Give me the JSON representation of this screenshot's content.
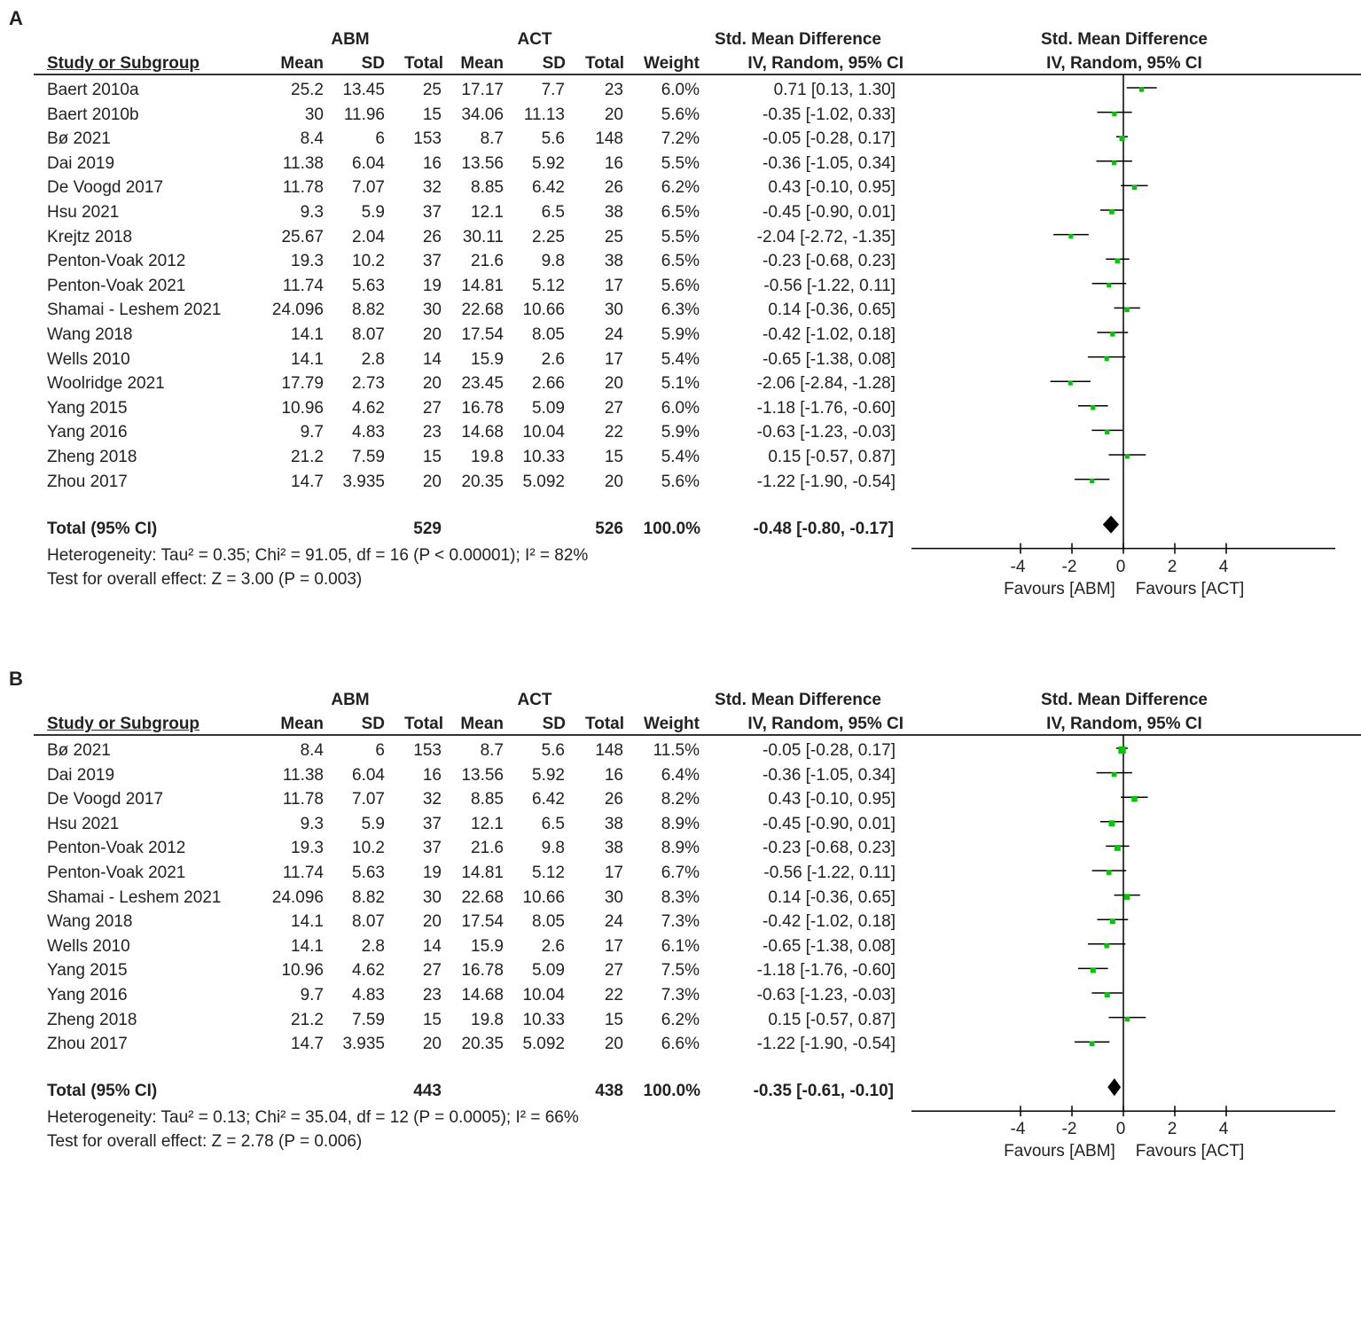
{
  "chart_data": [
    {
      "type": "forest",
      "panel_label": "A",
      "group1": "ABM",
      "group2": "ACT",
      "headers": {
        "study": "Study or Subgroup",
        "mean": "Mean",
        "sd": "SD",
        "total": "Total",
        "weight": "Weight",
        "effect_title": "Std. Mean Difference",
        "effect_method": "IV, Random, 95% CI"
      },
      "studies": [
        {
          "name": "Baert 2010a",
          "m1": "25.2",
          "sd1": "13.45",
          "n1": "25",
          "m2": "17.17",
          "sd2": "7.7",
          "n2": "23",
          "weight": "6.0%",
          "ci_text": "0.71 [0.13, 1.30]",
          "smd": 0.71,
          "lo": 0.13,
          "hi": 1.3
        },
        {
          "name": "Baert 2010b",
          "m1": "30",
          "sd1": "11.96",
          "n1": "15",
          "m2": "34.06",
          "sd2": "11.13",
          "n2": "20",
          "weight": "5.6%",
          "ci_text": "-0.35 [-1.02, 0.33]",
          "smd": -0.35,
          "lo": -1.02,
          "hi": 0.33
        },
        {
          "name": "Bø 2021",
          "m1": "8.4",
          "sd1": "6",
          "n1": "153",
          "m2": "8.7",
          "sd2": "5.6",
          "n2": "148",
          "weight": "7.2%",
          "ci_text": "-0.05 [-0.28, 0.17]",
          "smd": -0.05,
          "lo": -0.28,
          "hi": 0.17
        },
        {
          "name": "Dai 2019",
          "m1": "11.38",
          "sd1": "6.04",
          "n1": "16",
          "m2": "13.56",
          "sd2": "5.92",
          "n2": "16",
          "weight": "5.5%",
          "ci_text": "-0.36 [-1.05, 0.34]",
          "smd": -0.36,
          "lo": -1.05,
          "hi": 0.34
        },
        {
          "name": "De Voogd 2017",
          "m1": "11.78",
          "sd1": "7.07",
          "n1": "32",
          "m2": "8.85",
          "sd2": "6.42",
          "n2": "26",
          "weight": "6.2%",
          "ci_text": "0.43 [-0.10, 0.95]",
          "smd": 0.43,
          "lo": -0.1,
          "hi": 0.95
        },
        {
          "name": "Hsu 2021",
          "m1": "9.3",
          "sd1": "5.9",
          "n1": "37",
          "m2": "12.1",
          "sd2": "6.5",
          "n2": "38",
          "weight": "6.5%",
          "ci_text": "-0.45 [-0.90, 0.01]",
          "smd": -0.45,
          "lo": -0.9,
          "hi": 0.01
        },
        {
          "name": "Krejtz 2018",
          "m1": "25.67",
          "sd1": "2.04",
          "n1": "26",
          "m2": "30.11",
          "sd2": "2.25",
          "n2": "25",
          "weight": "5.5%",
          "ci_text": "-2.04 [-2.72, -1.35]",
          "smd": -2.04,
          "lo": -2.72,
          "hi": -1.35
        },
        {
          "name": "Penton-Voak 2012",
          "m1": "19.3",
          "sd1": "10.2",
          "n1": "37",
          "m2": "21.6",
          "sd2": "9.8",
          "n2": "38",
          "weight": "6.5%",
          "ci_text": "-0.23 [-0.68, 0.23]",
          "smd": -0.23,
          "lo": -0.68,
          "hi": 0.23
        },
        {
          "name": "Penton-Voak 2021",
          "m1": "11.74",
          "sd1": "5.63",
          "n1": "19",
          "m2": "14.81",
          "sd2": "5.12",
          "n2": "17",
          "weight": "5.6%",
          "ci_text": "-0.56 [-1.22, 0.11]",
          "smd": -0.56,
          "lo": -1.22,
          "hi": 0.11
        },
        {
          "name": "Shamai - Leshem 2021",
          "m1": "24.096",
          "sd1": "8.82",
          "n1": "30",
          "m2": "22.68",
          "sd2": "10.66",
          "n2": "30",
          "weight": "6.3%",
          "ci_text": "0.14 [-0.36, 0.65]",
          "smd": 0.14,
          "lo": -0.36,
          "hi": 0.65
        },
        {
          "name": "Wang 2018",
          "m1": "14.1",
          "sd1": "8.07",
          "n1": "20",
          "m2": "17.54",
          "sd2": "8.05",
          "n2": "24",
          "weight": "5.9%",
          "ci_text": "-0.42 [-1.02, 0.18]",
          "smd": -0.42,
          "lo": -1.02,
          "hi": 0.18
        },
        {
          "name": "Wells 2010",
          "m1": "14.1",
          "sd1": "2.8",
          "n1": "14",
          "m2": "15.9",
          "sd2": "2.6",
          "n2": "17",
          "weight": "5.4%",
          "ci_text": "-0.65 [-1.38, 0.08]",
          "smd": -0.65,
          "lo": -1.38,
          "hi": 0.08
        },
        {
          "name": "Woolridge 2021",
          "m1": "17.79",
          "sd1": "2.73",
          "n1": "20",
          "m2": "23.45",
          "sd2": "2.66",
          "n2": "20",
          "weight": "5.1%",
          "ci_text": "-2.06 [-2.84, -1.28]",
          "smd": -2.06,
          "lo": -2.84,
          "hi": -1.28
        },
        {
          "name": "Yang 2015",
          "m1": "10.96",
          "sd1": "4.62",
          "n1": "27",
          "m2": "16.78",
          "sd2": "5.09",
          "n2": "27",
          "weight": "6.0%",
          "ci_text": "-1.18 [-1.76, -0.60]",
          "smd": -1.18,
          "lo": -1.76,
          "hi": -0.6
        },
        {
          "name": "Yang 2016",
          "m1": "9.7",
          "sd1": "4.83",
          "n1": "23",
          "m2": "14.68",
          "sd2": "10.04",
          "n2": "22",
          "weight": "5.9%",
          "ci_text": "-0.63 [-1.23, -0.03]",
          "smd": -0.63,
          "lo": -1.23,
          "hi": -0.03
        },
        {
          "name": "Zheng 2018",
          "m1": "21.2",
          "sd1": "7.59",
          "n1": "15",
          "m2": "19.8",
          "sd2": "10.33",
          "n2": "15",
          "weight": "5.4%",
          "ci_text": "0.15 [-0.57, 0.87]",
          "smd": 0.15,
          "lo": -0.57,
          "hi": 0.87
        },
        {
          "name": "Zhou 2017",
          "m1": "14.7",
          "sd1": "3.935",
          "n1": "20",
          "m2": "20.35",
          "sd2": "5.092",
          "n2": "20",
          "weight": "5.6%",
          "ci_text": "-1.22 [-1.90, -0.54]",
          "smd": -1.22,
          "lo": -1.9,
          "hi": -0.54
        }
      ],
      "total": {
        "label": "Total (95% CI)",
        "n1": "529",
        "n2": "526",
        "weight": "100.0%",
        "ci_text": "-0.48 [-0.80, -0.17]",
        "smd": -0.48,
        "lo": -0.8,
        "hi": -0.17
      },
      "heterogeneity": "Heterogeneity: Tau² = 0.35; Chi² = 91.05, df = 16 (P < 0.00001); I² = 82%",
      "overall_effect": "Test for overall effect: Z = 3.00 (P = 0.003)",
      "axis": {
        "ticks": [
          "-4",
          "-2",
          "0",
          "2",
          "4"
        ],
        "favours_left": "Favours [ABM]",
        "favours_right": "Favours [ACT]"
      },
      "colors": {
        "square": "#00c800",
        "line": "#000000",
        "diamond": "#000000"
      }
    },
    {
      "type": "forest",
      "panel_label": "B",
      "group1": "ABM",
      "group2": "ACT",
      "headers": {
        "study": "Study or Subgroup",
        "mean": "Mean",
        "sd": "SD",
        "total": "Total",
        "weight": "Weight",
        "effect_title": "Std. Mean Difference",
        "effect_method": "IV, Random, 95% CI"
      },
      "studies": [
        {
          "name": "Bø 2021",
          "m1": "8.4",
          "sd1": "6",
          "n1": "153",
          "m2": "8.7",
          "sd2": "5.6",
          "n2": "148",
          "weight": "11.5%",
          "ci_text": "-0.05 [-0.28, 0.17]",
          "smd": -0.05,
          "lo": -0.28,
          "hi": 0.17
        },
        {
          "name": "Dai 2019",
          "m1": "11.38",
          "sd1": "6.04",
          "n1": "16",
          "m2": "13.56",
          "sd2": "5.92",
          "n2": "16",
          "weight": "6.4%",
          "ci_text": "-0.36 [-1.05, 0.34]",
          "smd": -0.36,
          "lo": -1.05,
          "hi": 0.34
        },
        {
          "name": "De Voogd 2017",
          "m1": "11.78",
          "sd1": "7.07",
          "n1": "32",
          "m2": "8.85",
          "sd2": "6.42",
          "n2": "26",
          "weight": "8.2%",
          "ci_text": "0.43 [-0.10, 0.95]",
          "smd": 0.43,
          "lo": -0.1,
          "hi": 0.95
        },
        {
          "name": "Hsu 2021",
          "m1": "9.3",
          "sd1": "5.9",
          "n1": "37",
          "m2": "12.1",
          "sd2": "6.5",
          "n2": "38",
          "weight": "8.9%",
          "ci_text": "-0.45 [-0.90, 0.01]",
          "smd": -0.45,
          "lo": -0.9,
          "hi": 0.01
        },
        {
          "name": "Penton-Voak 2012",
          "m1": "19.3",
          "sd1": "10.2",
          "n1": "37",
          "m2": "21.6",
          "sd2": "9.8",
          "n2": "38",
          "weight": "8.9%",
          "ci_text": "-0.23 [-0.68, 0.23]",
          "smd": -0.23,
          "lo": -0.68,
          "hi": 0.23
        },
        {
          "name": "Penton-Voak 2021",
          "m1": "11.74",
          "sd1": "5.63",
          "n1": "19",
          "m2": "14.81",
          "sd2": "5.12",
          "n2": "17",
          "weight": "6.7%",
          "ci_text": "-0.56 [-1.22, 0.11]",
          "smd": -0.56,
          "lo": -1.22,
          "hi": 0.11
        },
        {
          "name": "Shamai - Leshem 2021",
          "m1": "24.096",
          "sd1": "8.82",
          "n1": "30",
          "m2": "22.68",
          "sd2": "10.66",
          "n2": "30",
          "weight": "8.3%",
          "ci_text": "0.14 [-0.36, 0.65]",
          "smd": 0.14,
          "lo": -0.36,
          "hi": 0.65
        },
        {
          "name": "Wang 2018",
          "m1": "14.1",
          "sd1": "8.07",
          "n1": "20",
          "m2": "17.54",
          "sd2": "8.05",
          "n2": "24",
          "weight": "7.3%",
          "ci_text": "-0.42 [-1.02, 0.18]",
          "smd": -0.42,
          "lo": -1.02,
          "hi": 0.18
        },
        {
          "name": "Wells 2010",
          "m1": "14.1",
          "sd1": "2.8",
          "n1": "14",
          "m2": "15.9",
          "sd2": "2.6",
          "n2": "17",
          "weight": "6.1%",
          "ci_text": "-0.65 [-1.38, 0.08]",
          "smd": -0.65,
          "lo": -1.38,
          "hi": 0.08
        },
        {
          "name": "Yang 2015",
          "m1": "10.96",
          "sd1": "4.62",
          "n1": "27",
          "m2": "16.78",
          "sd2": "5.09",
          "n2": "27",
          "weight": "7.5%",
          "ci_text": "-1.18 [-1.76, -0.60]",
          "smd": -1.18,
          "lo": -1.76,
          "hi": -0.6
        },
        {
          "name": "Yang 2016",
          "m1": "9.7",
          "sd1": "4.83",
          "n1": "23",
          "m2": "14.68",
          "sd2": "10.04",
          "n2": "22",
          "weight": "7.3%",
          "ci_text": "-0.63 [-1.23, -0.03]",
          "smd": -0.63,
          "lo": -1.23,
          "hi": -0.03
        },
        {
          "name": "Zheng 2018",
          "m1": "21.2",
          "sd1": "7.59",
          "n1": "15",
          "m2": "19.8",
          "sd2": "10.33",
          "n2": "15",
          "weight": "6.2%",
          "ci_text": "0.15 [-0.57, 0.87]",
          "smd": 0.15,
          "lo": -0.57,
          "hi": 0.87
        },
        {
          "name": "Zhou 2017",
          "m1": "14.7",
          "sd1": "3.935",
          "n1": "20",
          "m2": "20.35",
          "sd2": "5.092",
          "n2": "20",
          "weight": "6.6%",
          "ci_text": "-1.22 [-1.90, -0.54]",
          "smd": -1.22,
          "lo": -1.9,
          "hi": -0.54
        }
      ],
      "total": {
        "label": "Total (95% CI)",
        "n1": "443",
        "n2": "438",
        "weight": "100.0%",
        "ci_text": "-0.35 [-0.61, -0.10]",
        "smd": -0.35,
        "lo": -0.61,
        "hi": -0.1
      },
      "heterogeneity": "Heterogeneity: Tau² = 0.13; Chi² = 35.04, df = 12 (P = 0.0005); I² = 66%",
      "overall_effect": "Test for overall effect: Z = 2.78 (P = 0.006)",
      "axis": {
        "ticks": [
          "-4",
          "-2",
          "0",
          "2",
          "4"
        ],
        "favours_left": "Favours [ABM]",
        "favours_right": "Favours [ACT]"
      },
      "colors": {
        "square": "#00c800",
        "line": "#000000",
        "diamond": "#000000"
      }
    }
  ]
}
